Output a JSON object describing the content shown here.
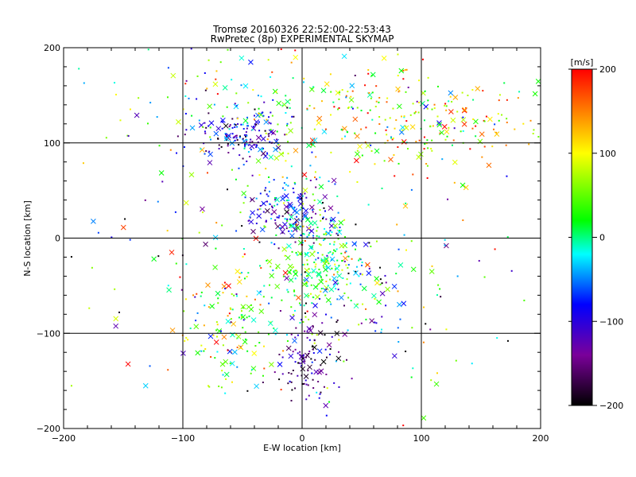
{
  "chart_data": {
    "type": "scatter",
    "title_line1": "Tromsø 20160326 22:52:00-22:53:43",
    "title_line2": "RwPretec (8p) EXPERIMENTAL SKYMAP",
    "xlabel": "E-W location [km]",
    "ylabel": "N-S location [km]",
    "xlim": [
      -200,
      200
    ],
    "ylim": [
      -200,
      200
    ],
    "xticks": [
      "−200",
      "−100",
      "0",
      "100",
      "200"
    ],
    "yticks": [
      "−200",
      "−100",
      "0",
      "100",
      "200"
    ],
    "grid": true,
    "gridlines_x": [
      -100,
      0,
      100
    ],
    "gridlines_y": [
      -100,
      0,
      100
    ],
    "colorbar": {
      "unit": "[m/s]",
      "range": [
        -200,
        200
      ],
      "ticks": [
        "200",
        "100",
        "0",
        "−100",
        "−200"
      ],
      "colormap": [
        "#000000",
        "#7a009a",
        "#0000ff",
        "#00ffff",
        "#00ff00",
        "#ffff00",
        "#ff0000"
      ]
    },
    "clusters": [
      {
        "cx": -50,
        "cy": 108,
        "sx": 18,
        "sy": 12,
        "n": 150,
        "vmean": -110,
        "vsd": 45
      },
      {
        "cx": -10,
        "cy": 32,
        "sx": 18,
        "sy": 16,
        "n": 170,
        "vmean": -70,
        "vsd": 55
      },
      {
        "cx": 12,
        "cy": -30,
        "sx": 18,
        "sy": 24,
        "n": 210,
        "vmean": 20,
        "vsd": 45
      },
      {
        "cx": 5,
        "cy": -128,
        "sx": 12,
        "sy": 22,
        "n": 110,
        "vmean": -140,
        "vsd": 40
      },
      {
        "cx": -60,
        "cy": -95,
        "sx": 24,
        "sy": 34,
        "n": 140,
        "vmean": 60,
        "vsd": 70
      },
      {
        "cx": 70,
        "cy": 125,
        "sx": 55,
        "sy": 30,
        "n": 190,
        "vmean": 100,
        "vsd": 90
      },
      {
        "cx": 125,
        "cy": 120,
        "sx": 45,
        "sy": 20,
        "n": 70,
        "vmean": 90,
        "vsd": 80
      },
      {
        "cx": -40,
        "cy": 135,
        "sx": 55,
        "sy": 40,
        "n": 120,
        "vmean": 10,
        "vsd": 80
      },
      {
        "cx": 60,
        "cy": -60,
        "sx": 30,
        "sy": 35,
        "n": 80,
        "vmean": -60,
        "vsd": 90
      },
      {
        "cx": 0,
        "cy": 0,
        "sx": 120,
        "sy": 110,
        "n": 260,
        "vmean": 0,
        "vsd": 110
      }
    ]
  },
  "page": {
    "title_line1": "Tromsø 20160326 22:52:00-22:53:43",
    "title_line2": "RwPretec (8p) EXPERIMENTAL SKYMAP",
    "xlabel": "E-W location [km]",
    "ylabel": "N-S location [km]",
    "cb_unit": "[m/s]"
  }
}
